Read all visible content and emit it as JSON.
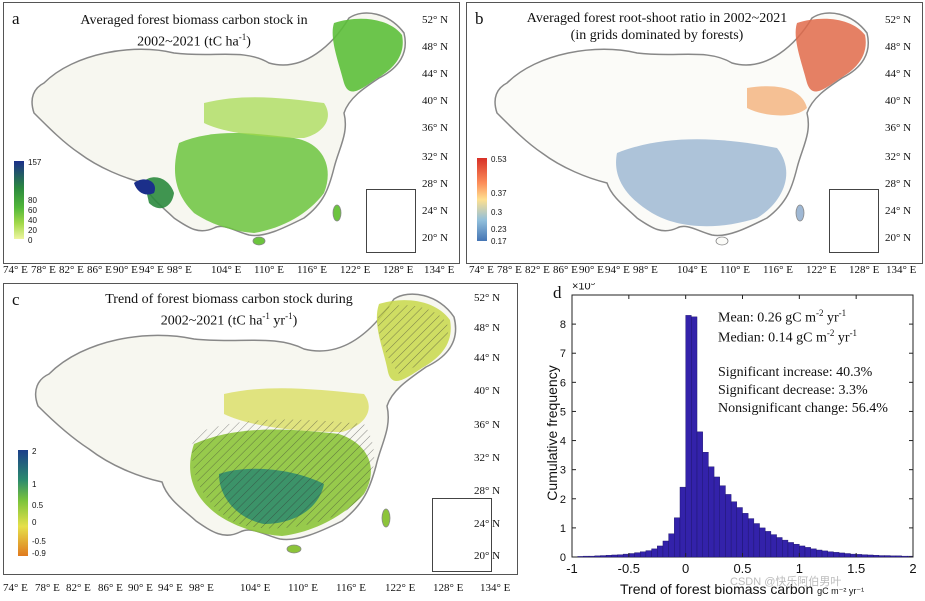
{
  "panel_a": {
    "label": "a",
    "title_line1": "Averaged forest biomass carbon stock in",
    "title_line2_prefix": "2002~2021 (tC ha",
    "title_line2_sup": "-1",
    "title_line2_suffix": ")",
    "colorbar_labels": [
      "157",
      "80",
      "60",
      "40",
      "20",
      "0"
    ],
    "colors": [
      "#1b2f8a",
      "#2b8a3e",
      "#52b83a",
      "#a3d94a",
      "#eef5a0"
    ]
  },
  "panel_b": {
    "label": "b",
    "title_line1": "Averaged forest root-shoot ratio in 2002~2021",
    "title_line2": "(in grids dominated by forests)",
    "colorbar_labels": [
      "0.53",
      "0.37",
      "0.3",
      "0.23",
      "0.17"
    ],
    "colors": [
      "#d73027",
      "#fc8d59",
      "#fee090",
      "#91bfdb",
      "#4575b4"
    ]
  },
  "panel_c": {
    "label": "c",
    "title_line1": "Trend of forest biomass carbon stock during",
    "title_line2_prefix": "2002~2021 (tC ha",
    "title_line2_sup1": "-1",
    "title_line2_mid": " yr",
    "title_line2_sup2": "-1",
    "title_line2_suffix": ")",
    "colorbar_labels": [
      "2",
      "1",
      "0.5",
      "0",
      "-0.5",
      "-0.9"
    ],
    "colors": [
      "#1b3f8a",
      "#2b8a6e",
      "#7cc43a",
      "#e6e04a",
      "#e07a1f"
    ]
  },
  "map_axes": {
    "lat_ticks": [
      "52° N",
      "48° N",
      "44° N",
      "40° N",
      "36° N",
      "32° N",
      "28° N",
      "24° N",
      "20° N"
    ],
    "lon_ticks": [
      "74° E",
      "78° E",
      "82° E",
      "86° E",
      "90° E",
      "94° E",
      "98° E",
      "104° E",
      "110° E",
      "116° E",
      "122° E",
      "128° E",
      "134° E"
    ]
  },
  "panel_d": {
    "label": "d",
    "exponent": "×10",
    "exponent_sup": "5",
    "stats": {
      "mean_prefix": "Mean: 0.26 gC m",
      "median_prefix": "Median: 0.14 gC m",
      "unit_sup_m": "-2",
      "unit_yr": " yr",
      "unit_sup_yr": "-1",
      "sig_increase": "Significant increase: 40.3%",
      "sig_decrease": "Significant decrease: 3.3%",
      "nonsig": "Nonsignificant change: 56.4%"
    },
    "xlabel": "Trend of forest biomass carbon",
    "xlabel_unit": "gC m⁻² yr⁻¹",
    "ylabel": "Cumulative frequency",
    "bar_color": "#3322aa"
  },
  "chart_data": {
    "type": "bar",
    "title": "",
    "xlabel": "Trend of forest biomass carbon gC m-2 yr-1",
    "ylabel": "Cumulative frequency",
    "y_scale_note": "×10^5",
    "xlim": [
      -1,
      2
    ],
    "ylim": [
      0,
      9
    ],
    "x_ticks": [
      "-1",
      "-0.5",
      "0",
      "0.5",
      "1",
      "1.5",
      "2"
    ],
    "y_ticks": [
      "0",
      "1",
      "2",
      "3",
      "4",
      "5",
      "6",
      "7",
      "8"
    ],
    "bin_width": 0.05,
    "bin_starts": [
      -0.95,
      -0.9,
      -0.85,
      -0.8,
      -0.75,
      -0.7,
      -0.65,
      -0.6,
      -0.55,
      -0.5,
      -0.45,
      -0.4,
      -0.35,
      -0.3,
      -0.25,
      -0.2,
      -0.15,
      -0.1,
      -0.05,
      0,
      0.05,
      0.1,
      0.15,
      0.2,
      0.25,
      0.3,
      0.35,
      0.4,
      0.45,
      0.5,
      0.55,
      0.6,
      0.65,
      0.7,
      0.75,
      0.8,
      0.85,
      0.9,
      0.95,
      1,
      1.05,
      1.1,
      1.15,
      1.2,
      1.25,
      1.3,
      1.35,
      1.4,
      1.45,
      1.5,
      1.55,
      1.6,
      1.65,
      1.7,
      1.75,
      1.8,
      1.85,
      1.9,
      1.95
    ],
    "values": [
      0.02,
      0.03,
      0.03,
      0.04,
      0.05,
      0.06,
      0.07,
      0.08,
      0.1,
      0.12,
      0.15,
      0.18,
      0.22,
      0.28,
      0.38,
      0.55,
      0.8,
      1.35,
      2.4,
      8.3,
      8.25,
      4.3,
      3.6,
      3.1,
      2.75,
      2.45,
      2.15,
      1.9,
      1.7,
      1.5,
      1.32,
      1.15,
      1.0,
      0.88,
      0.77,
      0.67,
      0.58,
      0.5,
      0.44,
      0.38,
      0.33,
      0.28,
      0.24,
      0.21,
      0.18,
      0.16,
      0.14,
      0.12,
      0.1,
      0.09,
      0.08,
      0.07,
      0.06,
      0.05,
      0.05,
      0.04,
      0.04,
      0.03,
      0.03
    ]
  },
  "watermark": "CSDN @快乐阿伯男叶"
}
